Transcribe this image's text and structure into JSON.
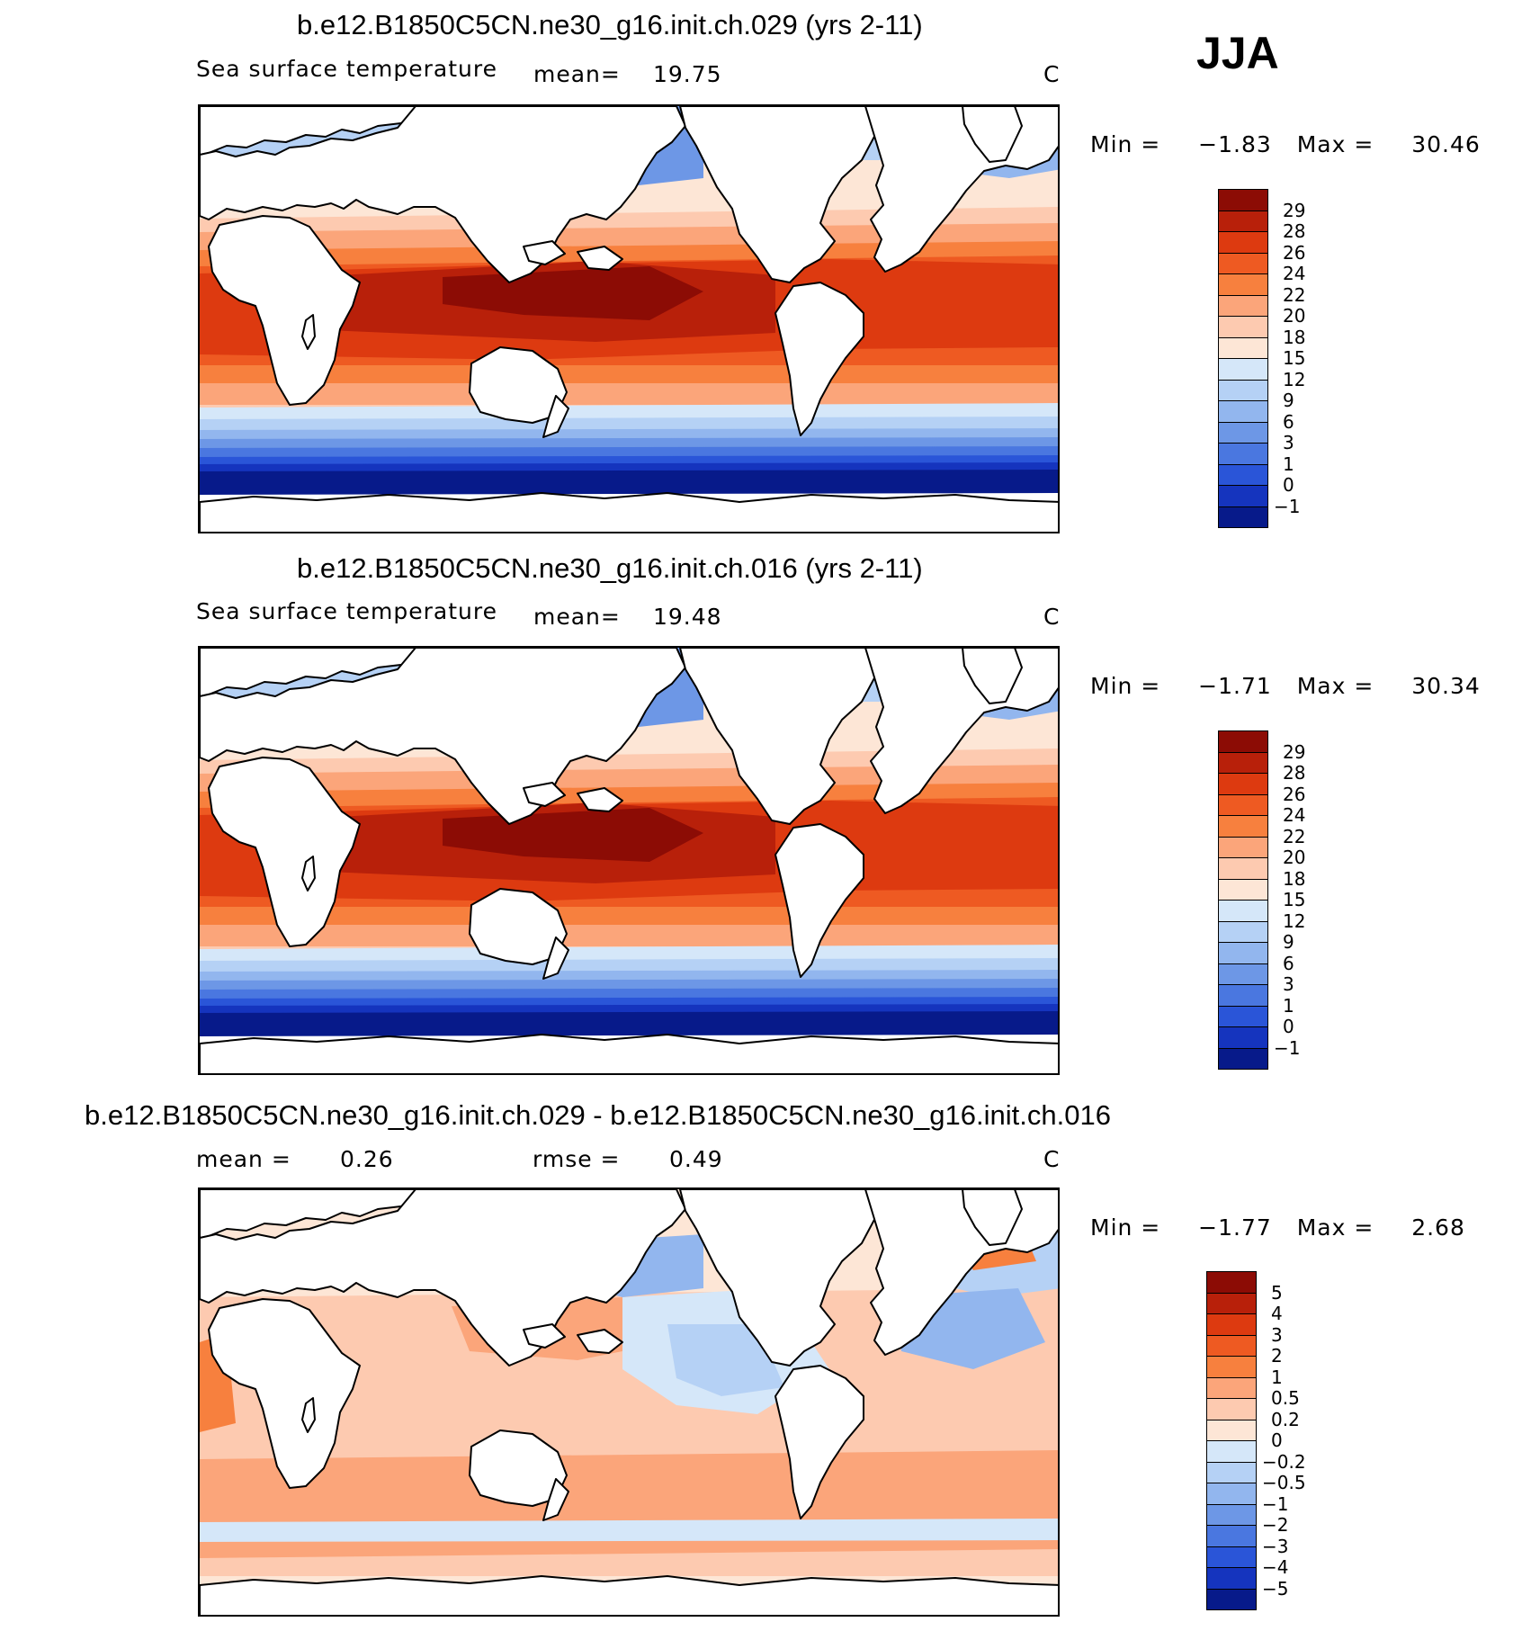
{
  "season": "JJA",
  "panels": [
    {
      "title": "b.e12.B1850C5CN.ne30_g16.init.ch.029 (yrs 2-11)",
      "variable": "Sea surface temperature",
      "stat1_label": "mean=",
      "stat1_value": "19.75",
      "stat2_label": "",
      "stat2_value": "",
      "units": "C",
      "min_label": "Min =",
      "min_value": "−1.83",
      "max_label": "Max =",
      "max_value": "30.46",
      "kind": "sst",
      "colorbar": {
        "labels": [
          "29",
          "28",
          "26",
          "24",
          "22",
          "20",
          "18",
          "15",
          "12",
          "9",
          "6",
          "3",
          "1",
          "0",
          "−1"
        ],
        "colors": [
          "#8c0c05",
          "#b8200a",
          "#dd3a10",
          "#ee5a22",
          "#f7803e",
          "#fba57a",
          "#fdcab0",
          "#fde6d6",
          "#d5e7f9",
          "#b5d1f5",
          "#92b6ee",
          "#6d97e6",
          "#4a77e0",
          "#2a55d8",
          "#1534be",
          "#071a8a"
        ]
      }
    },
    {
      "title": "b.e12.B1850C5CN.ne30_g16.init.ch.016 (yrs 2-11)",
      "variable": "Sea surface temperature",
      "stat1_label": "mean=",
      "stat1_value": "19.48",
      "stat2_label": "",
      "stat2_value": "",
      "units": "C",
      "min_label": "Min =",
      "min_value": "−1.71",
      "max_label": "Max =",
      "max_value": "30.34",
      "kind": "sst",
      "colorbar": {
        "labels": [
          "29",
          "28",
          "26",
          "24",
          "22",
          "20",
          "18",
          "15",
          "12",
          "9",
          "6",
          "3",
          "1",
          "0",
          "−1"
        ],
        "colors": [
          "#8c0c05",
          "#b8200a",
          "#dd3a10",
          "#ee5a22",
          "#f7803e",
          "#fba57a",
          "#fdcab0",
          "#fde6d6",
          "#d5e7f9",
          "#b5d1f5",
          "#92b6ee",
          "#6d97e6",
          "#4a77e0",
          "#2a55d8",
          "#1534be",
          "#071a8a"
        ]
      }
    },
    {
      "title": "b.e12.B1850C5CN.ne30_g16.init.ch.029 - b.e12.B1850C5CN.ne30_g16.init.ch.016",
      "variable": "",
      "stat1_label": "mean =",
      "stat1_value": "0.26",
      "stat2_label": "rmse =",
      "stat2_value": "0.49",
      "units": "C",
      "min_label": "Min =",
      "min_value": "−1.77",
      "max_label": "Max =",
      "max_value": "2.68",
      "kind": "diff",
      "colorbar": {
        "labels": [
          "5",
          "4",
          "3",
          "2",
          "1",
          "0.5",
          "0.2",
          "0",
          "−0.2",
          "−0.5",
          "−1",
          "−2",
          "−3",
          "−4",
          "−5"
        ],
        "colors": [
          "#8c0c05",
          "#b8200a",
          "#dd3a10",
          "#ee5a22",
          "#f7803e",
          "#fba57a",
          "#fdcab0",
          "#fde6d6",
          "#d5e7f9",
          "#b5d1f5",
          "#92b6ee",
          "#6d97e6",
          "#4a77e0",
          "#2a55d8",
          "#1534be",
          "#071a8a"
        ]
      }
    }
  ]
}
